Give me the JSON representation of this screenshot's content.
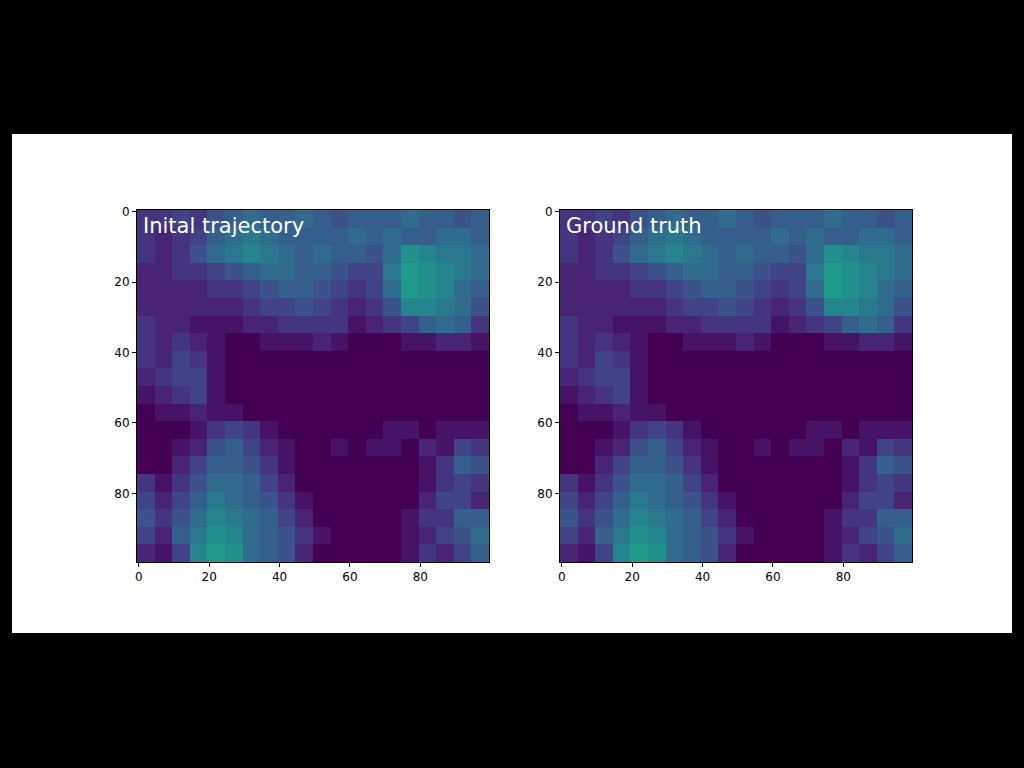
{
  "chart_data": [
    {
      "type": "heatmap",
      "title": "Inital trajectory",
      "color": "viridis",
      "zlim": [
        0,
        1
      ],
      "x": [
        2,
        7,
        12,
        17,
        22,
        27,
        32,
        37,
        42,
        47,
        52,
        57,
        62,
        67,
        72,
        77,
        82,
        87,
        92,
        97
      ],
      "y": [
        2,
        7,
        12,
        17,
        22,
        27,
        32,
        37,
        42,
        47,
        52,
        57,
        62,
        67,
        72,
        77,
        82,
        87,
        92,
        97
      ],
      "xlim": [
        -0.5,
        99.5
      ],
      "ylim": [
        99.5,
        -0.5
      ],
      "xticks": [
        0,
        20,
        40,
        60,
        80
      ],
      "yticks": [
        0,
        20,
        40,
        60,
        80
      ],
      "z": [
        [
          0.15,
          0.15,
          0.2,
          0.15,
          0.25,
          0.3,
          0.35,
          0.3,
          0.3,
          0.35,
          0.3,
          0.25,
          0.3,
          0.3,
          0.3,
          0.35,
          0.3,
          0.3,
          0.25,
          0.3
        ],
        [
          0.15,
          0.1,
          0.15,
          0.2,
          0.3,
          0.35,
          0.4,
          0.35,
          0.3,
          0.3,
          0.3,
          0.3,
          0.35,
          0.3,
          0.35,
          0.3,
          0.3,
          0.35,
          0.35,
          0.3
        ],
        [
          0.15,
          0.1,
          0.15,
          0.25,
          0.35,
          0.4,
          0.45,
          0.4,
          0.35,
          0.3,
          0.35,
          0.3,
          0.3,
          0.25,
          0.35,
          0.5,
          0.45,
          0.4,
          0.4,
          0.35
        ],
        [
          0.1,
          0.1,
          0.15,
          0.15,
          0.2,
          0.25,
          0.3,
          0.35,
          0.35,
          0.3,
          0.3,
          0.25,
          0.2,
          0.2,
          0.4,
          0.55,
          0.5,
          0.45,
          0.4,
          0.35
        ],
        [
          0.1,
          0.1,
          0.1,
          0.1,
          0.15,
          0.15,
          0.2,
          0.25,
          0.3,
          0.3,
          0.25,
          0.2,
          0.15,
          0.2,
          0.35,
          0.55,
          0.5,
          0.45,
          0.35,
          0.3
        ],
        [
          0.1,
          0.1,
          0.1,
          0.1,
          0.1,
          0.1,
          0.15,
          0.2,
          0.2,
          0.25,
          0.2,
          0.15,
          0.1,
          0.15,
          0.25,
          0.45,
          0.45,
          0.4,
          0.35,
          0.25
        ],
        [
          0.15,
          0.1,
          0.1,
          0.05,
          0.05,
          0.05,
          0.1,
          0.1,
          0.15,
          0.15,
          0.15,
          0.15,
          0.05,
          0.1,
          0.15,
          0.2,
          0.3,
          0.35,
          0.3,
          0.15
        ],
        [
          0.15,
          0.1,
          0.15,
          0.1,
          0.05,
          0,
          0,
          0.05,
          0.05,
          0.05,
          0.1,
          0.05,
          0,
          0,
          0,
          0.05,
          0.05,
          0.1,
          0.1,
          0.05
        ],
        [
          0.15,
          0.1,
          0.2,
          0.15,
          0.05,
          0,
          0,
          0,
          0,
          0,
          0,
          0,
          0,
          0,
          0,
          0,
          0,
          0,
          0,
          0
        ],
        [
          0.1,
          0.15,
          0.2,
          0.2,
          0.05,
          0,
          0,
          0,
          0,
          0,
          0,
          0,
          0,
          0,
          0,
          0,
          0,
          0,
          0,
          0
        ],
        [
          0.05,
          0.1,
          0.15,
          0.2,
          0.05,
          0,
          0,
          0,
          0,
          0,
          0,
          0,
          0,
          0,
          0,
          0,
          0,
          0,
          0,
          0
        ],
        [
          0,
          0.05,
          0.05,
          0.1,
          0.05,
          0.05,
          0,
          0,
          0,
          0,
          0,
          0,
          0,
          0,
          0,
          0,
          0,
          0,
          0,
          0
        ],
        [
          0,
          0,
          0,
          0.05,
          0.15,
          0.2,
          0.15,
          0.05,
          0,
          0,
          0,
          0,
          0,
          0,
          0.05,
          0.05,
          0,
          0.05,
          0.05,
          0.05
        ],
        [
          0,
          0,
          0.05,
          0.1,
          0.25,
          0.3,
          0.2,
          0.1,
          0.05,
          0,
          0,
          0.05,
          0,
          0.05,
          0.05,
          0,
          0.1,
          0.05,
          0.2,
          0.15
        ],
        [
          0,
          0,
          0.1,
          0.2,
          0.3,
          0.3,
          0.25,
          0.15,
          0.05,
          0,
          0,
          0,
          0,
          0,
          0,
          0,
          0.05,
          0.15,
          0.3,
          0.25
        ],
        [
          0.15,
          0.05,
          0.15,
          0.25,
          0.35,
          0.35,
          0.3,
          0.2,
          0.1,
          0,
          0,
          0,
          0,
          0,
          0,
          0,
          0.05,
          0.15,
          0.2,
          0.15
        ],
        [
          0.2,
          0.1,
          0.2,
          0.3,
          0.4,
          0.35,
          0.3,
          0.25,
          0.15,
          0.05,
          0,
          0,
          0,
          0,
          0,
          0,
          0.1,
          0.2,
          0.2,
          0.1
        ],
        [
          0.25,
          0.15,
          0.25,
          0.35,
          0.45,
          0.4,
          0.35,
          0.3,
          0.2,
          0.1,
          0,
          0,
          0,
          0,
          0,
          0.05,
          0.15,
          0.15,
          0.3,
          0.3
        ],
        [
          0.2,
          0.1,
          0.3,
          0.4,
          0.5,
          0.45,
          0.35,
          0.3,
          0.25,
          0.15,
          0.05,
          0,
          0,
          0,
          0,
          0.05,
          0.1,
          0.2,
          0.25,
          0.35
        ],
        [
          0.1,
          0.05,
          0.2,
          0.45,
          0.55,
          0.5,
          0.35,
          0.3,
          0.25,
          0.1,
          0,
          0,
          0,
          0,
          0,
          0.05,
          0.15,
          0.1,
          0.2,
          0.3
        ]
      ]
    },
    {
      "type": "heatmap",
      "title": "Ground truth",
      "color": "viridis",
      "zlim": [
        0,
        1
      ],
      "x": [
        2,
        7,
        12,
        17,
        22,
        27,
        32,
        37,
        42,
        47,
        52,
        57,
        62,
        67,
        72,
        77,
        82,
        87,
        92,
        97
      ],
      "y": [
        2,
        7,
        12,
        17,
        22,
        27,
        32,
        37,
        42,
        47,
        52,
        57,
        62,
        67,
        72,
        77,
        82,
        87,
        92,
        97
      ],
      "xlim": [
        -0.5,
        99.5
      ],
      "ylim": [
        99.5,
        -0.5
      ],
      "xticks": [
        0,
        20,
        40,
        60,
        80
      ],
      "yticks": [
        0,
        20,
        40,
        60,
        80
      ],
      "z": [
        [
          0.15,
          0.15,
          0.2,
          0.15,
          0.25,
          0.3,
          0.35,
          0.3,
          0.3,
          0.35,
          0.3,
          0.25,
          0.3,
          0.3,
          0.3,
          0.35,
          0.3,
          0.3,
          0.25,
          0.3
        ],
        [
          0.15,
          0.1,
          0.15,
          0.2,
          0.3,
          0.35,
          0.4,
          0.35,
          0.3,
          0.3,
          0.3,
          0.3,
          0.35,
          0.3,
          0.35,
          0.3,
          0.3,
          0.35,
          0.35,
          0.3
        ],
        [
          0.15,
          0.1,
          0.15,
          0.25,
          0.35,
          0.4,
          0.45,
          0.4,
          0.35,
          0.3,
          0.35,
          0.3,
          0.3,
          0.25,
          0.35,
          0.5,
          0.45,
          0.4,
          0.4,
          0.35
        ],
        [
          0.1,
          0.1,
          0.15,
          0.15,
          0.2,
          0.25,
          0.3,
          0.35,
          0.35,
          0.3,
          0.3,
          0.25,
          0.2,
          0.2,
          0.4,
          0.55,
          0.5,
          0.45,
          0.4,
          0.35
        ],
        [
          0.1,
          0.1,
          0.1,
          0.1,
          0.15,
          0.15,
          0.2,
          0.25,
          0.3,
          0.3,
          0.25,
          0.2,
          0.15,
          0.2,
          0.35,
          0.55,
          0.5,
          0.45,
          0.35,
          0.3
        ],
        [
          0.1,
          0.1,
          0.1,
          0.1,
          0.1,
          0.1,
          0.15,
          0.2,
          0.2,
          0.25,
          0.2,
          0.15,
          0.1,
          0.15,
          0.25,
          0.45,
          0.45,
          0.4,
          0.35,
          0.25
        ],
        [
          0.15,
          0.1,
          0.1,
          0.05,
          0.05,
          0.05,
          0.1,
          0.1,
          0.15,
          0.15,
          0.15,
          0.15,
          0.05,
          0.1,
          0.15,
          0.2,
          0.3,
          0.35,
          0.3,
          0.15
        ],
        [
          0.15,
          0.1,
          0.15,
          0.1,
          0.05,
          0,
          0,
          0.05,
          0.05,
          0.05,
          0.1,
          0.05,
          0,
          0,
          0,
          0.05,
          0.05,
          0.1,
          0.1,
          0.05
        ],
        [
          0.15,
          0.1,
          0.2,
          0.15,
          0.05,
          0,
          0,
          0,
          0,
          0,
          0,
          0,
          0,
          0,
          0,
          0,
          0,
          0,
          0,
          0
        ],
        [
          0.1,
          0.15,
          0.2,
          0.2,
          0.05,
          0,
          0,
          0,
          0,
          0,
          0,
          0,
          0,
          0,
          0,
          0,
          0,
          0,
          0,
          0
        ],
        [
          0.05,
          0.1,
          0.15,
          0.2,
          0.05,
          0,
          0,
          0,
          0,
          0,
          0,
          0,
          0,
          0,
          0,
          0,
          0,
          0,
          0,
          0
        ],
        [
          0,
          0.05,
          0.05,
          0.1,
          0.05,
          0.05,
          0,
          0,
          0,
          0,
          0,
          0,
          0,
          0,
          0,
          0,
          0,
          0,
          0,
          0
        ],
        [
          0,
          0,
          0,
          0.05,
          0.15,
          0.2,
          0.15,
          0.05,
          0,
          0,
          0,
          0,
          0,
          0,
          0.05,
          0.05,
          0,
          0.05,
          0.05,
          0.05
        ],
        [
          0,
          0,
          0.05,
          0.1,
          0.25,
          0.3,
          0.2,
          0.1,
          0.05,
          0,
          0,
          0.05,
          0,
          0.05,
          0.05,
          0,
          0.1,
          0.05,
          0.2,
          0.15
        ],
        [
          0,
          0,
          0.1,
          0.2,
          0.3,
          0.3,
          0.25,
          0.15,
          0.05,
          0,
          0,
          0,
          0,
          0,
          0,
          0,
          0.05,
          0.15,
          0.3,
          0.25
        ],
        [
          0.15,
          0.05,
          0.15,
          0.25,
          0.35,
          0.35,
          0.3,
          0.2,
          0.1,
          0,
          0,
          0,
          0,
          0,
          0,
          0,
          0.05,
          0.15,
          0.2,
          0.15
        ],
        [
          0.2,
          0.1,
          0.2,
          0.3,
          0.4,
          0.35,
          0.3,
          0.25,
          0.15,
          0.05,
          0,
          0,
          0,
          0,
          0,
          0,
          0.1,
          0.2,
          0.2,
          0.1
        ],
        [
          0.25,
          0.15,
          0.25,
          0.35,
          0.45,
          0.4,
          0.35,
          0.3,
          0.2,
          0.1,
          0,
          0,
          0,
          0,
          0,
          0.05,
          0.15,
          0.15,
          0.3,
          0.3
        ],
        [
          0.2,
          0.1,
          0.3,
          0.4,
          0.5,
          0.45,
          0.35,
          0.3,
          0.25,
          0.15,
          0.05,
          0,
          0,
          0,
          0,
          0.05,
          0.1,
          0.2,
          0.25,
          0.35
        ],
        [
          0.1,
          0.05,
          0.2,
          0.45,
          0.55,
          0.5,
          0.35,
          0.3,
          0.25,
          0.1,
          0,
          0,
          0,
          0,
          0,
          0.05,
          0.15,
          0.1,
          0.2,
          0.3
        ]
      ]
    }
  ]
}
